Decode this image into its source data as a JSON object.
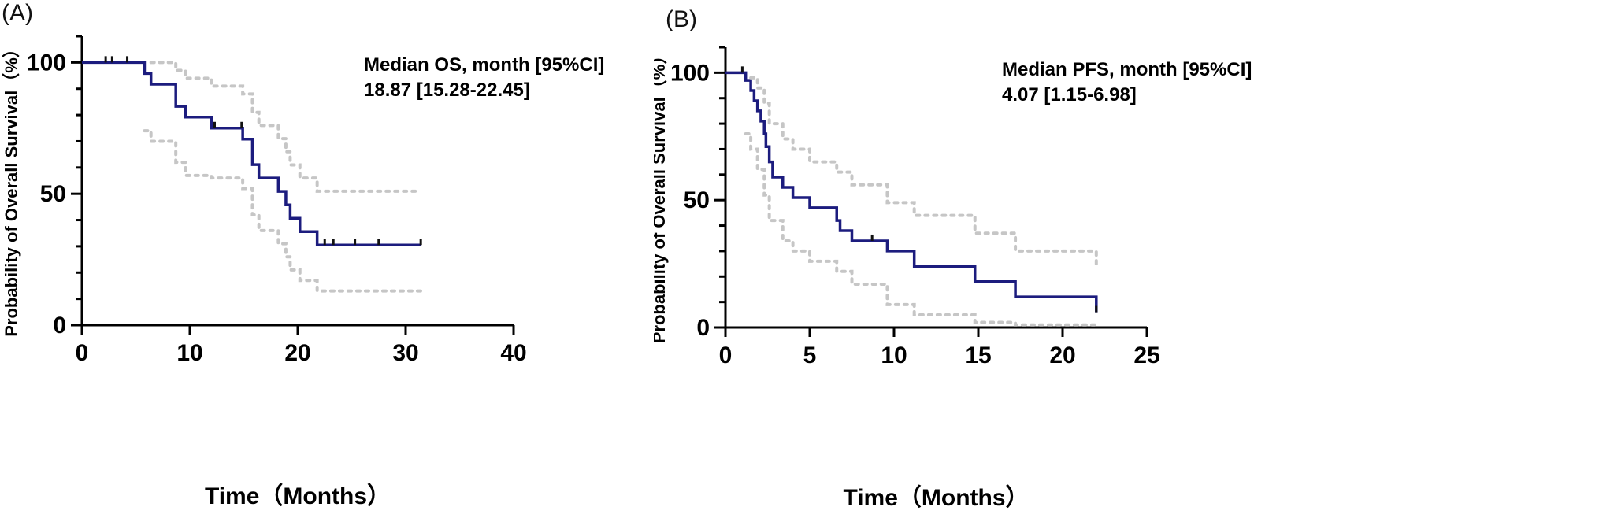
{
  "panels": [
    {
      "label": "(A)"
    },
    {
      "label": "(B)"
    }
  ],
  "chart_data": [
    {
      "type": "line",
      "step": true,
      "title": "",
      "xlabel": "Time（Months）",
      "ylabel": "Probability of Overall Survival（%）",
      "xlim": [
        0,
        40
      ],
      "ylim": [
        0,
        110
      ],
      "xticks": [
        0,
        10,
        20,
        30,
        40
      ],
      "xtick_labels": [
        "0",
        "10",
        "20",
        "30",
        "40"
      ],
      "yticks": [
        0,
        50,
        100
      ],
      "ytick_labels": [
        "0",
        "50",
        "100"
      ],
      "grid": false,
      "annotation": {
        "line1": "Median OS, month [95%CI]",
        "line2": "18.87 [15.28-22.45]",
        "placement": "top-right"
      },
      "colors": {
        "survival": "#1c1c7e",
        "ci": "#c6c6c6",
        "axis": "#000000"
      },
      "series": [
        {
          "role": "estimate",
          "x": [
            0,
            5.8,
            6.4,
            8.7,
            9.6,
            12.0,
            14.9,
            15.8,
            16.4,
            18.2,
            18.9,
            19.3,
            20.2,
            21.8,
            31.4
          ],
          "y": [
            100,
            95.8,
            91.7,
            83.3,
            79.2,
            75.0,
            70.8,
            61.1,
            56.0,
            50.9,
            45.8,
            40.7,
            35.6,
            30.5,
            30.5
          ]
        },
        {
          "role": "ci-upper",
          "x": [
            6.4,
            8.7,
            9.6,
            12.0,
            14.9,
            15.8,
            16.4,
            18.2,
            18.9,
            19.3,
            20.2,
            21.8,
            31.4
          ],
          "y": [
            100,
            97,
            94,
            91,
            88,
            81,
            76,
            71,
            66,
            61,
            56,
            51,
            51
          ]
        },
        {
          "role": "ci-lower",
          "x": [
            5.8,
            6.4,
            8.7,
            9.6,
            12.0,
            14.9,
            15.8,
            16.4,
            18.2,
            18.9,
            19.3,
            20.2,
            21.8,
            31.4
          ],
          "y": [
            74,
            70,
            62,
            57,
            56,
            52,
            42,
            36,
            31,
            26,
            21,
            17,
            13,
            13
          ]
        }
      ],
      "censored_x": [
        2.2,
        2.8,
        4.2,
        12.3,
        14.8,
        22.5,
        23.3,
        25.3,
        27.5,
        31.4
      ]
    },
    {
      "type": "line",
      "step": true,
      "title": "",
      "xlabel": "Time（Months）",
      "ylabel": "Probability of Overall Survival（%）",
      "xlim": [
        0,
        25
      ],
      "ylim": [
        0,
        110
      ],
      "xticks": [
        0,
        5,
        10,
        15,
        20,
        25
      ],
      "xtick_labels": [
        "0",
        "5",
        "10",
        "15",
        "20",
        "25"
      ],
      "yticks": [
        0,
        50,
        100
      ],
      "ytick_labels": [
        "0",
        "50",
        "100"
      ],
      "grid": false,
      "annotation": {
        "line1": "Median PFS, month [95%CI]",
        "line2": "4.07 [1.15-6.98]",
        "placement": "top-right"
      },
      "colors": {
        "survival": "#1c1c7e",
        "ci": "#c6c6c6",
        "axis": "#000000"
      },
      "series": [
        {
          "role": "estimate",
          "x": [
            0,
            1.2,
            1.5,
            1.7,
            1.9,
            2.1,
            2.3,
            2.4,
            2.6,
            2.8,
            3.4,
            4.0,
            5.0,
            6.6,
            6.8,
            7.5,
            9.6,
            11.2,
            14.8,
            17.2,
            22.0
          ],
          "y": [
            100,
            97,
            93,
            89,
            85,
            81,
            76,
            71,
            65,
            59,
            55,
            51,
            47,
            42,
            38,
            34,
            30,
            24,
            18,
            12,
            6
          ]
        },
        {
          "role": "ci-upper",
          "x": [
            1.5,
            1.9,
            2.3,
            2.6,
            3.4,
            4.0,
            5.0,
            6.6,
            7.5,
            9.6,
            11.2,
            14.8,
            17.2,
            22.0
          ],
          "y": [
            98,
            94,
            88,
            80,
            74,
            70,
            65,
            61,
            56,
            49,
            44,
            37,
            30,
            23
          ]
        },
        {
          "role": "ci-lower",
          "x": [
            1.2,
            1.5,
            1.9,
            2.3,
            2.6,
            3.4,
            4.0,
            5.0,
            6.6,
            7.5,
            9.6,
            11.2,
            14.8,
            17.2,
            22.0
          ],
          "y": [
            76,
            70,
            62,
            52,
            42,
            34,
            30,
            26,
            22,
            17,
            9,
            5,
            2,
            1,
            1
          ]
        }
      ],
      "censored_x": [
        1.0,
        8.7,
        22.0
      ]
    }
  ]
}
